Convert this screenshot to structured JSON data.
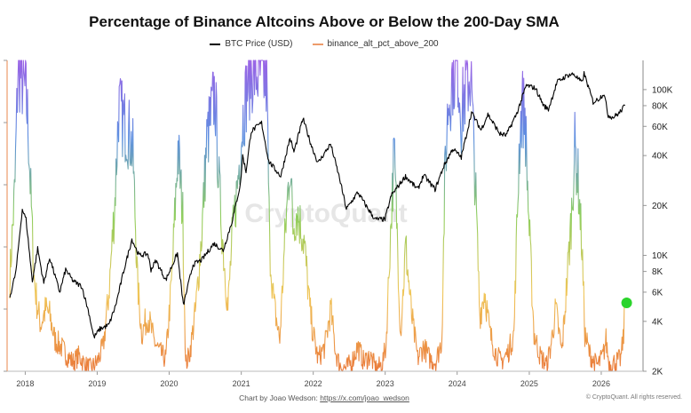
{
  "chart_data": {
    "type": "line",
    "title": "Percentage of Binance Altcoins Above or Below the 200-Day SMA",
    "legend_placement": "top-center",
    "watermark": "CryptoQuant",
    "footer": {
      "credit_label": "Chart by Joao Wedson:",
      "credit_link": "https://x.com/joao_wedson",
      "rights": "© CryptoQuant. All rights reserved."
    },
    "x_axis": {
      "type": "time",
      "range": [
        "2017-10-01",
        "2026-08-01"
      ],
      "tick_labels": [
        "2018",
        "2019",
        "2020",
        "2021",
        "2022",
        "2023",
        "2024",
        "2025",
        "2026"
      ]
    },
    "y_right": {
      "scale": "log",
      "range": [
        2000,
        150000
      ],
      "tick_values": [
        2000,
        4000,
        6000,
        8000,
        10000,
        20000,
        40000,
        60000,
        80000,
        100000
      ],
      "tick_labels": [
        "2K",
        "4K",
        "6K",
        "8K",
        "10K",
        "20K",
        "40K",
        "60K",
        "80K",
        "100K"
      ]
    },
    "y_left": {
      "range": [
        0,
        100
      ],
      "tick_labels_visible": false,
      "color_scale": [
        "#ea7a3a",
        "#f0c659",
        "#8fce5e",
        "#5d8fe0",
        "#9a63e6"
      ]
    },
    "series": [
      {
        "name": "BTC Price (USD)",
        "axis": "right",
        "color": "#000000",
        "points": [
          [
            "2017-10-15",
            5600
          ],
          [
            "2017-11-15",
            8000
          ],
          [
            "2017-12-17",
            19000
          ],
          [
            "2018-01-05",
            16500
          ],
          [
            "2018-02-06",
            7000
          ],
          [
            "2018-03-05",
            11000
          ],
          [
            "2018-04-05",
            6800
          ],
          [
            "2018-05-05",
            9700
          ],
          [
            "2018-06-25",
            6000
          ],
          [
            "2018-07-25",
            8200
          ],
          [
            "2018-09-01",
            7000
          ],
          [
            "2018-10-15",
            6500
          ],
          [
            "2018-11-20",
            4500
          ],
          [
            "2018-12-15",
            3200
          ],
          [
            "2019-01-15",
            3600
          ],
          [
            "2019-03-01",
            3800
          ],
          [
            "2019-04-05",
            5000
          ],
          [
            "2019-05-15",
            8000
          ],
          [
            "2019-06-26",
            12500
          ],
          [
            "2019-08-01",
            10000
          ],
          [
            "2019-09-15",
            10200
          ],
          [
            "2019-10-01",
            8200
          ],
          [
            "2019-10-26",
            9300
          ],
          [
            "2019-12-15",
            7100
          ],
          [
            "2020-02-12",
            10300
          ],
          [
            "2020-03-13",
            5000
          ],
          [
            "2020-05-01",
            8800
          ],
          [
            "2020-06-15",
            9400
          ],
          [
            "2020-08-15",
            11800
          ],
          [
            "2020-10-01",
            10700
          ],
          [
            "2020-11-15",
            16000
          ],
          [
            "2020-12-28",
            27000
          ],
          [
            "2021-01-08",
            40000
          ],
          [
            "2021-01-25",
            32000
          ],
          [
            "2021-02-20",
            56000
          ],
          [
            "2021-04-14",
            63000
          ],
          [
            "2021-05-20",
            37000
          ],
          [
            "2021-07-20",
            30000
          ],
          [
            "2021-09-05",
            51000
          ],
          [
            "2021-09-25",
            42000
          ],
          [
            "2021-11-10",
            67000
          ],
          [
            "2021-12-20",
            47000
          ],
          [
            "2022-01-25",
            36000
          ],
          [
            "2022-03-30",
            47000
          ],
          [
            "2022-05-15",
            29000
          ],
          [
            "2022-06-18",
            19000
          ],
          [
            "2022-08-15",
            24000
          ],
          [
            "2022-10-01",
            19500
          ],
          [
            "2022-11-10",
            16500
          ],
          [
            "2022-12-31",
            16500
          ],
          [
            "2023-02-01",
            23000
          ],
          [
            "2023-04-14",
            30000
          ],
          [
            "2023-06-15",
            25000
          ],
          [
            "2023-07-15",
            30500
          ],
          [
            "2023-09-11",
            25000
          ],
          [
            "2023-10-25",
            34500
          ],
          [
            "2023-12-10",
            44000
          ],
          [
            "2024-01-22",
            39000
          ],
          [
            "2024-03-14",
            73000
          ],
          [
            "2024-05-01",
            57000
          ],
          [
            "2024-06-05",
            71000
          ],
          [
            "2024-08-05",
            54000
          ],
          [
            "2024-09-06",
            53000
          ],
          [
            "2024-10-30",
            72000
          ],
          [
            "2024-12-17",
            106000
          ],
          [
            "2025-02-01",
            102000
          ],
          [
            "2025-03-15",
            80000
          ],
          [
            "2025-04-08",
            76000
          ],
          [
            "2025-05-22",
            111000
          ],
          [
            "2025-07-14",
            122000
          ],
          [
            "2025-08-14",
            124000
          ],
          [
            "2025-09-25",
            110000
          ],
          [
            "2025-10-06",
            125000
          ],
          [
            "2025-11-21",
            84000
          ],
          [
            "2025-12-20",
            88000
          ],
          [
            "2026-01-15",
            95000
          ],
          [
            "2026-02-05",
            70000
          ],
          [
            "2026-03-01",
            68000
          ],
          [
            "2026-04-01",
            72000
          ],
          [
            "2026-05-01",
            80000
          ]
        ]
      },
      {
        "name": "binance_alt_pct_above_200",
        "axis": "left",
        "color": "#ed9b6a",
        "points": [
          [
            "2017-10-15",
            30
          ],
          [
            "2017-11-10",
            60
          ],
          [
            "2017-11-25",
            98
          ],
          [
            "2017-12-20",
            93
          ],
          [
            "2018-01-05",
            88
          ],
          [
            "2018-01-15",
            80
          ],
          [
            "2018-02-01",
            52
          ],
          [
            "2018-02-15",
            30
          ],
          [
            "2018-03-01",
            22
          ],
          [
            "2018-03-20",
            15
          ],
          [
            "2018-04-15",
            20
          ],
          [
            "2018-05-05",
            18
          ],
          [
            "2018-06-01",
            10
          ],
          [
            "2018-07-01",
            8
          ],
          [
            "2018-08-01",
            5
          ],
          [
            "2018-09-01",
            3
          ],
          [
            "2018-10-01",
            5
          ],
          [
            "2018-11-01",
            2
          ],
          [
            "2018-12-01",
            1
          ],
          [
            "2019-01-01",
            3
          ],
          [
            "2019-02-01",
            8
          ],
          [
            "2019-03-01",
            25
          ],
          [
            "2019-04-01",
            55
          ],
          [
            "2019-04-20",
            85
          ],
          [
            "2019-05-15",
            80
          ],
          [
            "2019-06-15",
            76
          ],
          [
            "2019-07-01",
            70
          ],
          [
            "2019-07-25",
            28
          ],
          [
            "2019-08-15",
            12
          ],
          [
            "2019-09-15",
            18
          ],
          [
            "2019-10-15",
            10
          ],
          [
            "2019-11-15",
            6
          ],
          [
            "2019-12-15",
            4
          ],
          [
            "2020-01-15",
            30
          ],
          [
            "2020-02-15",
            72
          ],
          [
            "2020-03-10",
            50
          ],
          [
            "2020-03-25",
            2
          ],
          [
            "2020-04-15",
            6
          ],
          [
            "2020-05-15",
            20
          ],
          [
            "2020-06-15",
            45
          ],
          [
            "2020-07-10",
            74
          ],
          [
            "2020-08-01",
            82
          ],
          [
            "2020-08-20",
            90
          ],
          [
            "2020-09-10",
            60
          ],
          [
            "2020-10-01",
            40
          ],
          [
            "2020-10-25",
            20
          ],
          [
            "2020-11-15",
            42
          ],
          [
            "2020-12-15",
            62
          ],
          [
            "2021-01-10",
            82
          ],
          [
            "2021-02-01",
            92
          ],
          [
            "2021-02-20",
            97
          ],
          [
            "2021-03-15",
            96
          ],
          [
            "2021-04-15",
            95
          ],
          [
            "2021-05-10",
            93
          ],
          [
            "2021-05-25",
            40
          ],
          [
            "2021-06-15",
            22
          ],
          [
            "2021-07-15",
            10
          ],
          [
            "2021-08-10",
            42
          ],
          [
            "2021-09-05",
            68
          ],
          [
            "2021-09-20",
            46
          ],
          [
            "2021-10-10",
            52
          ],
          [
            "2021-11-15",
            42
          ],
          [
            "2021-12-15",
            20
          ],
          [
            "2022-01-01",
            12
          ],
          [
            "2022-01-25",
            4
          ],
          [
            "2022-03-01",
            8
          ],
          [
            "2022-03-31",
            20
          ],
          [
            "2022-04-25",
            6
          ],
          [
            "2022-05-15",
            2
          ],
          [
            "2022-06-15",
            1
          ],
          [
            "2022-07-15",
            3
          ],
          [
            "2022-08-15",
            8
          ],
          [
            "2022-09-15",
            3
          ],
          [
            "2022-10-15",
            5
          ],
          [
            "2022-11-15",
            1
          ],
          [
            "2022-12-15",
            2
          ],
          [
            "2023-01-05",
            8
          ],
          [
            "2023-01-25",
            40
          ],
          [
            "2023-02-15",
            70
          ],
          [
            "2023-02-28",
            50
          ],
          [
            "2023-03-20",
            12
          ],
          [
            "2023-04-15",
            40
          ],
          [
            "2023-05-15",
            18
          ],
          [
            "2023-06-15",
            4
          ],
          [
            "2023-07-15",
            8
          ],
          [
            "2023-08-15",
            4
          ],
          [
            "2023-09-15",
            3
          ],
          [
            "2023-10-15",
            10
          ],
          [
            "2023-10-30",
            60
          ],
          [
            "2023-11-15",
            85
          ],
          [
            "2023-12-10",
            96
          ],
          [
            "2024-01-05",
            98
          ],
          [
            "2024-01-22",
            82
          ],
          [
            "2024-02-15",
            92
          ],
          [
            "2024-03-10",
            96
          ],
          [
            "2024-04-05",
            55
          ],
          [
            "2024-04-25",
            18
          ],
          [
            "2024-05-20",
            26
          ],
          [
            "2024-06-15",
            12
          ],
          [
            "2024-07-15",
            6
          ],
          [
            "2024-08-10",
            3
          ],
          [
            "2024-09-15",
            6
          ],
          [
            "2024-10-15",
            12
          ],
          [
            "2024-11-10",
            70
          ],
          [
            "2024-11-25",
            86
          ],
          [
            "2024-12-10",
            82
          ],
          [
            "2025-01-01",
            45
          ],
          [
            "2025-01-25",
            12
          ],
          [
            "2025-02-25",
            5
          ],
          [
            "2025-03-30",
            2
          ],
          [
            "2025-04-20",
            8
          ],
          [
            "2025-05-15",
            20
          ],
          [
            "2025-06-15",
            6
          ],
          [
            "2025-07-10",
            28
          ],
          [
            "2025-08-01",
            48
          ],
          [
            "2025-08-20",
            72
          ],
          [
            "2025-09-05",
            62
          ],
          [
            "2025-09-25",
            40
          ],
          [
            "2025-10-10",
            12
          ],
          [
            "2025-11-01",
            6
          ],
          [
            "2025-11-25",
            3
          ],
          [
            "2025-12-15",
            2
          ],
          [
            "2026-01-10",
            5
          ],
          [
            "2026-01-25",
            10
          ],
          [
            "2026-02-10",
            2
          ],
          [
            "2026-03-10",
            3
          ],
          [
            "2026-04-10",
            4
          ],
          [
            "2026-04-25",
            12
          ],
          [
            "2026-05-01",
            22
          ]
        ],
        "latest_marker": {
          "date": "2026-05-10",
          "value": 22,
          "color": "#2bd42b"
        }
      }
    ]
  }
}
